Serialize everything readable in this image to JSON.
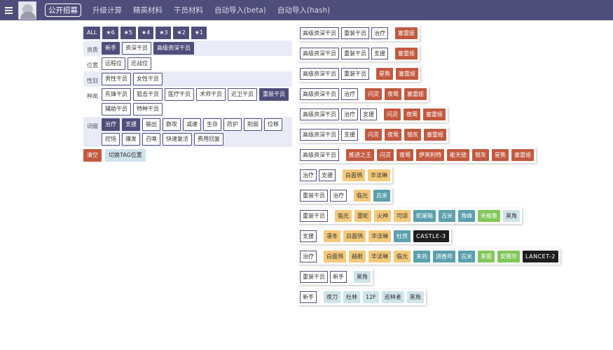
{
  "header": {
    "nav": [
      "公开招募",
      "升级计算",
      "精英材料",
      "干员材料",
      "自动导入(beta)",
      "自动导入(hash)"
    ],
    "colors": {
      "bar": "#4f4e7b"
    }
  },
  "filters": {
    "stars": [
      "ALL",
      "★6",
      "★5",
      "★4",
      "★3",
      "★2",
      "★1"
    ],
    "rows": [
      {
        "label": "资质",
        "chips": [
          {
            "text": "新手",
            "sel": true
          },
          {
            "text": "资深干员",
            "sel": false
          },
          {
            "text": "高级资深干员",
            "sel": true
          }
        ]
      },
      {
        "label": "位置",
        "chips": [
          {
            "text": "远程位",
            "sel": false
          },
          {
            "text": "近战位",
            "sel": false
          }
        ]
      },
      {
        "label": "性别",
        "chips": [
          {
            "text": "男性干员",
            "sel": false
          },
          {
            "text": "女性干员",
            "sel": false
          }
        ]
      },
      {
        "label": "种类",
        "chips": [
          {
            "text": "先锋干员",
            "sel": false
          },
          {
            "text": "狙击干员",
            "sel": false
          },
          {
            "text": "医疗干员",
            "sel": false
          },
          {
            "text": "术师干员",
            "sel": false
          },
          {
            "text": "近卫干员",
            "sel": false
          },
          {
            "text": "重装干员",
            "sel": true
          },
          {
            "text": "辅助干员",
            "sel": false
          },
          {
            "text": "特种干员",
            "sel": false
          }
        ]
      },
      {
        "label": "词缀",
        "chips": [
          {
            "text": "治疗",
            "sel": true
          },
          {
            "text": "支援",
            "sel": true
          },
          {
            "text": "输出",
            "sel": false
          },
          {
            "text": "群攻",
            "sel": false
          },
          {
            "text": "减速",
            "sel": false
          },
          {
            "text": "生存",
            "sel": false
          },
          {
            "text": "防护",
            "sel": false
          },
          {
            "text": "削弱",
            "sel": false
          },
          {
            "text": "位移",
            "sel": false
          },
          {
            "text": "控场",
            "sel": false
          },
          {
            "text": "爆发",
            "sel": false
          },
          {
            "text": "召唤",
            "sel": false
          },
          {
            "text": "快速复活",
            "sel": false
          },
          {
            "text": "费用回复",
            "sel": false
          }
        ]
      }
    ],
    "clear_label": "清空",
    "toggle_label": "切换TAG位置"
  },
  "results": [
    {
      "tags": [
        "高级资深干员",
        "重装干员",
        "治疗"
      ],
      "ops": [
        {
          "name": "塞雷娅",
          "r": 6
        }
      ]
    },
    {
      "tags": [
        "高级资深干员",
        "重装干员",
        "支援"
      ],
      "ops": [
        {
          "name": "塞雷娅",
          "r": 6
        }
      ]
    },
    {
      "tags": [
        "高级资深干员",
        "重装干员"
      ],
      "ops": [
        {
          "name": "星熊",
          "r": 6
        },
        {
          "name": "塞雷娅",
          "r": 6
        }
      ]
    },
    {
      "tags": [
        "高级资深干员",
        "治疗"
      ],
      "ops": [
        {
          "name": "闪灵",
          "r": 6
        },
        {
          "name": "夜莺",
          "r": 6
        },
        {
          "name": "塞雷娅",
          "r": 6
        }
      ]
    },
    {
      "tags": [
        "高级资深干员",
        "治疗",
        "支援"
      ],
      "ops": [
        {
          "name": "闪灵",
          "r": 6
        },
        {
          "name": "夜莺",
          "r": 6
        },
        {
          "name": "塞雷娅",
          "r": 6
        }
      ]
    },
    {
      "tags": [
        "高级资深干员",
        "支援"
      ],
      "ops": [
        {
          "name": "闪灵",
          "r": 6
        },
        {
          "name": "夜莺",
          "r": 6
        },
        {
          "name": "银灰",
          "r": 6
        },
        {
          "name": "塞雷娅",
          "r": 6
        }
      ]
    },
    {
      "tags": [
        "高级资深干员"
      ],
      "ops": [
        {
          "name": "推进之王",
          "r": 6
        },
        {
          "name": "闪灵",
          "r": 6
        },
        {
          "name": "夜莺",
          "r": 6
        },
        {
          "name": "伊芙利特",
          "r": 6
        },
        {
          "name": "能天使",
          "r": 6
        },
        {
          "name": "银灰",
          "r": 6
        },
        {
          "name": "星熊",
          "r": 6
        },
        {
          "name": "塞雷娅",
          "r": 6
        }
      ]
    },
    {
      "tags": [
        "治疗",
        "支援"
      ],
      "ops": [
        {
          "name": "白面鸮",
          "r": 5
        },
        {
          "name": "华法琳",
          "r": 5
        }
      ]
    },
    {
      "tags": [
        "重装干员",
        "治疗"
      ],
      "ops": [
        {
          "name": "临光",
          "r": 5
        },
        {
          "name": "古米",
          "r": 4
        }
      ]
    },
    {
      "tags": [
        "重装干员"
      ],
      "ops": [
        {
          "name": "临光",
          "r": 5
        },
        {
          "name": "雷蛇",
          "r": 5
        },
        {
          "name": "火神",
          "r": 5
        },
        {
          "name": "可颂",
          "r": 5
        },
        {
          "name": "蛇屠箱",
          "r": 4
        },
        {
          "name": "古米",
          "r": 4
        },
        {
          "name": "角峰",
          "r": 4
        },
        {
          "name": "米格鲁",
          "r": 2
        },
        {
          "name": "黑角",
          "r": 3
        }
      ]
    },
    {
      "tags": [
        "支援"
      ],
      "ops": [
        {
          "name": "凛冬",
          "r": 5
        },
        {
          "name": "白面鸮",
          "r": 5
        },
        {
          "name": "华法琳",
          "r": 5
        },
        {
          "name": "杜宾",
          "r": 4
        },
        {
          "name": "CASTLE-3",
          "r": 1
        }
      ]
    },
    {
      "tags": [
        "治疗"
      ],
      "ops": [
        {
          "name": "白面鸮",
          "r": 5
        },
        {
          "name": "赫默",
          "r": 5
        },
        {
          "name": "华法琳",
          "r": 5
        },
        {
          "name": "临光",
          "r": 5
        },
        {
          "name": "末药",
          "r": 4
        },
        {
          "name": "调香师",
          "r": 4
        },
        {
          "name": "古米",
          "r": 4
        },
        {
          "name": "芙蓉",
          "r": 2
        },
        {
          "name": "安赛尔",
          "r": 2
        },
        {
          "name": "LANCET-2",
          "r": 1
        }
      ]
    },
    {
      "tags": [
        "重装干员",
        "新手"
      ],
      "ops": [
        {
          "name": "黑角",
          "r": 3
        }
      ]
    },
    {
      "tags": [
        "新手"
      ],
      "ops": [
        {
          "name": "夜刀",
          "r": 3
        },
        {
          "name": "杜林",
          "r": 3
        },
        {
          "name": "12F",
          "r": 3
        },
        {
          "name": "巡林者",
          "r": 3
        },
        {
          "name": "黑角",
          "r": 3
        }
      ]
    }
  ]
}
